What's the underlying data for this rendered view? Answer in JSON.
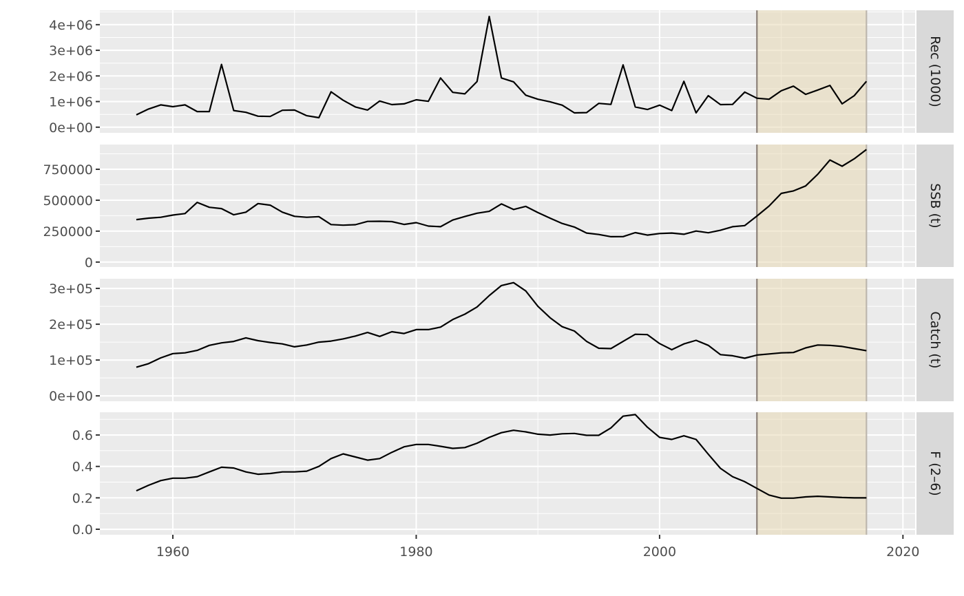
{
  "chart_data": {
    "type": "line",
    "layout": "facets-stacked",
    "shared_x": true,
    "xlim": [
      1954,
      2021
    ],
    "x_ticks": [
      1960,
      1980,
      2000,
      2020
    ],
    "grid": true,
    "highlight": {
      "x_range": [
        2008,
        2017
      ],
      "color": "#e8d9b4",
      "vline_colors": [
        "#8c8178",
        "#bdb6ad"
      ]
    },
    "years": [
      1957,
      1958,
      1959,
      1960,
      1961,
      1962,
      1963,
      1964,
      1965,
      1966,
      1967,
      1968,
      1969,
      1970,
      1971,
      1972,
      1973,
      1974,
      1975,
      1976,
      1977,
      1978,
      1979,
      1980,
      1981,
      1982,
      1983,
      1984,
      1985,
      1986,
      1987,
      1988,
      1989,
      1990,
      1991,
      1992,
      1993,
      1994,
      1995,
      1996,
      1997,
      1998,
      1999,
      2000,
      2001,
      2002,
      2003,
      2004,
      2005,
      2006,
      2007,
      2008,
      2009,
      2010,
      2011,
      2012,
      2013,
      2014,
      2015,
      2016,
      2017
    ],
    "panels": [
      {
        "strip": "Rec (1000)",
        "ylim": [
          -220000,
          4560000
        ],
        "ticks": [
          0,
          1000000,
          2000000,
          3000000,
          4000000
        ],
        "tick_labels": [
          "0e+00",
          "1e+06",
          "2e+06",
          "3e+06",
          "4e+06"
        ],
        "values": [
          480000,
          710000,
          870000,
          800000,
          870000,
          610000,
          610000,
          2450000,
          650000,
          580000,
          430000,
          420000,
          660000,
          670000,
          450000,
          370000,
          1380000,
          1050000,
          790000,
          670000,
          1020000,
          880000,
          910000,
          1070000,
          1010000,
          1920000,
          1360000,
          1300000,
          1780000,
          4320000,
          1920000,
          1770000,
          1250000,
          1090000,
          990000,
          860000,
          560000,
          570000,
          930000,
          890000,
          2430000,
          790000,
          690000,
          860000,
          650000,
          1790000,
          560000,
          1230000,
          880000,
          890000,
          1370000,
          1130000,
          1090000,
          1420000,
          1600000,
          1280000,
          1450000,
          1630000,
          910000,
          1230000,
          1790000
        ]
      },
      {
        "strip": "SSB (t)",
        "ylim": [
          -40000,
          950000
        ],
        "ticks": [
          0,
          250000,
          500000,
          750000
        ],
        "tick_labels": [
          "0",
          "250000",
          "500000",
          "750000"
        ],
        "values": [
          343000,
          355000,
          362000,
          380000,
          392000,
          482000,
          443000,
          432000,
          382000,
          403000,
          473000,
          460000,
          403000,
          370000,
          362000,
          367000,
          303000,
          298000,
          302000,
          329000,
          330000,
          327000,
          304000,
          319000,
          291000,
          286000,
          340000,
          368000,
          395000,
          410000,
          470000,
          425000,
          450000,
          400000,
          355000,
          312000,
          283000,
          235000,
          223000,
          205000,
          206000,
          238000,
          218000,
          231000,
          235000,
          225000,
          251000,
          237000,
          257000,
          286000,
          295000,
          372000,
          453000,
          555000,
          575000,
          615000,
          710000,
          825000,
          775000,
          835000,
          910000
        ]
      },
      {
        "strip": "Catch (t)",
        "ylim": [
          -15000,
          327000
        ],
        "ticks": [
          0,
          100000,
          200000,
          300000
        ],
        "tick_labels": [
          "0e+00",
          "1e+05",
          "2e+05",
          "3e+05"
        ],
        "values": [
          80000,
          90000,
          106000,
          118000,
          120000,
          127000,
          141000,
          148000,
          152000,
          162000,
          154000,
          149000,
          145000,
          137000,
          142000,
          150000,
          153000,
          159000,
          167000,
          177000,
          166000,
          179000,
          174000,
          185000,
          185000,
          192000,
          213000,
          228000,
          248000,
          280000,
          308000,
          316000,
          293000,
          250000,
          218000,
          193000,
          181000,
          152000,
          133000,
          132000,
          152000,
          172000,
          171000,
          146000,
          129000,
          145000,
          155000,
          141000,
          115000,
          112000,
          105000,
          114000,
          117000,
          120000,
          121000,
          134000,
          142000,
          141000,
          138000,
          132000,
          126000
        ]
      },
      {
        "strip": "F (2–6)",
        "ylim": [
          -0.035,
          0.745
        ],
        "ticks": [
          0,
          0.2,
          0.4,
          0.6
        ],
        "tick_labels": [
          "0.0",
          "0.2",
          "0.4",
          "0.6"
        ],
        "values": [
          0.245,
          0.28,
          0.31,
          0.325,
          0.325,
          0.335,
          0.365,
          0.395,
          0.39,
          0.365,
          0.35,
          0.355,
          0.365,
          0.365,
          0.37,
          0.4,
          0.45,
          0.48,
          0.46,
          0.44,
          0.45,
          0.49,
          0.525,
          0.54,
          0.54,
          0.528,
          0.515,
          0.52,
          0.548,
          0.585,
          0.615,
          0.63,
          0.62,
          0.605,
          0.6,
          0.608,
          0.61,
          0.598,
          0.598,
          0.645,
          0.72,
          0.73,
          0.65,
          0.585,
          0.572,
          0.595,
          0.572,
          0.478,
          0.388,
          0.335,
          0.303,
          0.26,
          0.218,
          0.198,
          0.198,
          0.206,
          0.21,
          0.206,
          0.202,
          0.2,
          0.2
        ]
      }
    ]
  }
}
